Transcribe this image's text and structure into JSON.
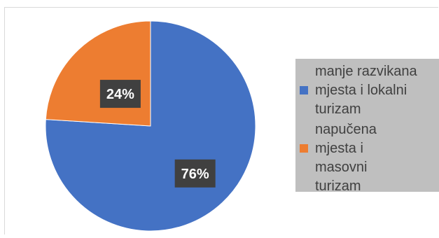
{
  "chart_data": {
    "type": "pie",
    "title": "",
    "categories": [
      "manje razvikana mjesta i lokalni turizam",
      "napučena mjesta i masovni turizam"
    ],
    "values": [
      76,
      24
    ],
    "data_labels": [
      "76%",
      "24%"
    ],
    "colors": [
      "#4472c4",
      "#ed7d31"
    ],
    "legend_position": "right",
    "legend_lines": [
      [
        "manje razvikana",
        "mjesta i lokalni",
        "turizam"
      ],
      [
        "napučena",
        "mjesta i",
        "masovni",
        "turizam"
      ]
    ],
    "label_style": {
      "background": "#404040",
      "color": "#ffffff"
    }
  }
}
